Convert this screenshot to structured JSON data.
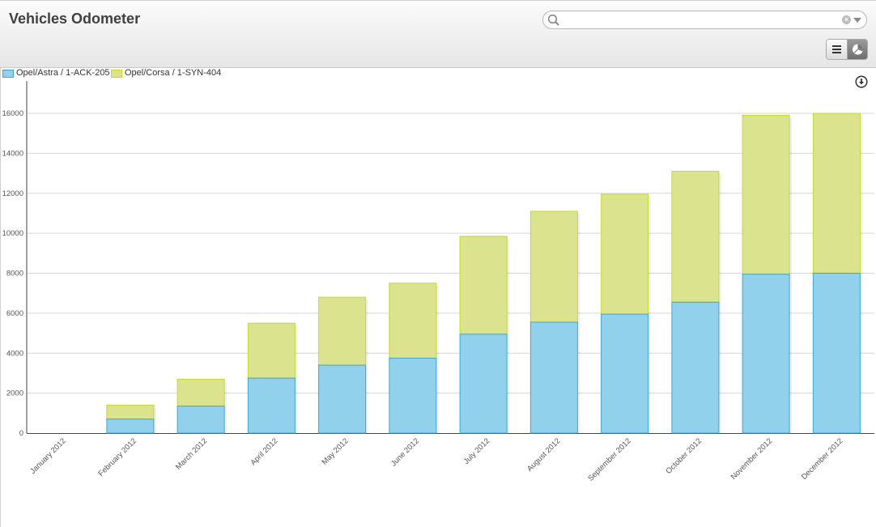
{
  "header": {
    "title": "Vehicles Odometer",
    "search": {
      "value": "",
      "placeholder": "",
      "icon": "search-icon"
    }
  },
  "toolbar": {
    "list_view_icon": "list-icon",
    "chart_view_icon": "pie-chart-icon",
    "download_icon": "download-icon"
  },
  "colors": {
    "series_1_fill": "#92d1ec",
    "series_1_stroke": "#3ba6d3",
    "series_2_fill": "#dce38f",
    "series_2_stroke": "#c5d82a",
    "grid": "#d6d6d6",
    "axis": "#444444"
  },
  "chart_data": {
    "type": "bar",
    "stacked": true,
    "categories": [
      "January 2012",
      "February 2012",
      "March 2012",
      "April 2012",
      "May 2012",
      "June 2012",
      "July 2012",
      "August 2012",
      "September 2012",
      "October 2012",
      "November 2012",
      "December 2012"
    ],
    "series": [
      {
        "name": "Opel/Astra / 1-ACK-205",
        "values": [
          0,
          700,
          1350,
          2750,
          3400,
          3750,
          4950,
          5550,
          5950,
          6550,
          7950,
          8000
        ]
      },
      {
        "name": "Opel/Corsa / 1-SYN-404",
        "values": [
          0,
          700,
          1350,
          2750,
          3400,
          3750,
          4900,
          5550,
          6000,
          6550,
          7950,
          8000
        ]
      }
    ],
    "yticks": [
      "0",
      "2000",
      "4000",
      "6000",
      "8000",
      "10000",
      "12000",
      "14000",
      "16000"
    ],
    "ylim": [
      0,
      17500
    ],
    "legend_position": "top-left",
    "grid": true
  }
}
